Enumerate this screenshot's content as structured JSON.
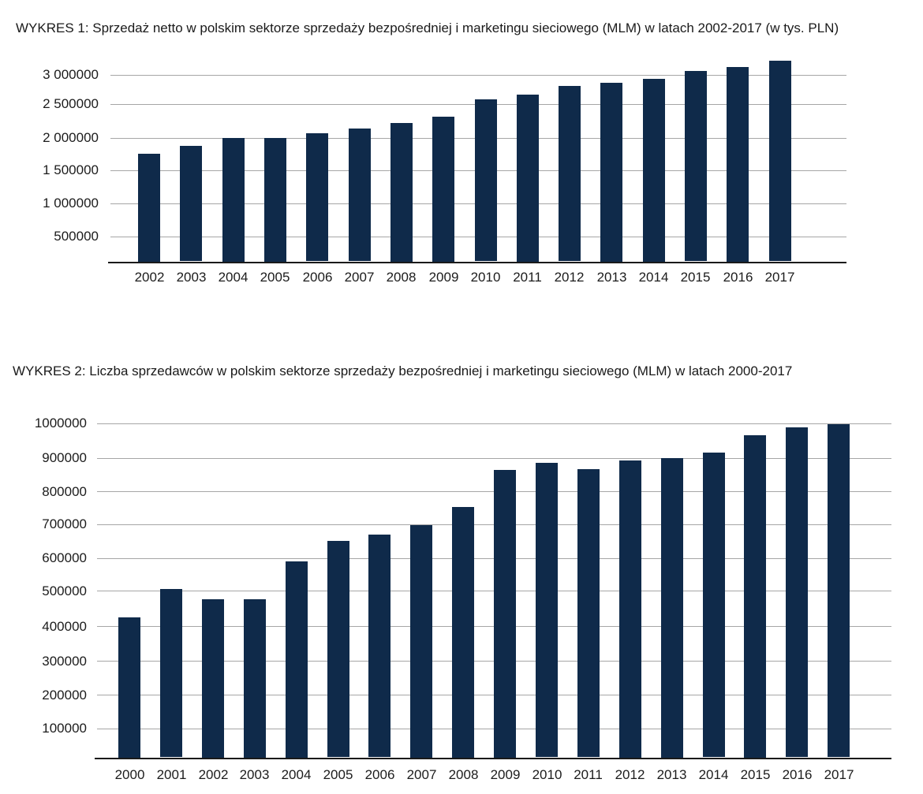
{
  "chart_data": [
    {
      "type": "bar",
      "title": "WYKRES 1: Sprzedaż netto w polskim sektorze sprzedaży bezpośredniej i marketingu sieciowego (MLM) w latach 2002-2017 (w tys. PLN)",
      "unit": "tys. PLN",
      "categories": [
        "2002",
        "2003",
        "2004",
        "2005",
        "2006",
        "2007",
        "2008",
        "2009",
        "2010",
        "2011",
        "2012",
        "2013",
        "2014",
        "2015",
        "2016",
        "2017"
      ],
      "values": [
        1750000,
        1870000,
        2000000,
        2000000,
        2060000,
        2130000,
        2220000,
        2310000,
        2570000,
        2660000,
        2800000,
        2860000,
        2930000,
        3060000,
        3130000,
        3230000
      ],
      "y_ticks": [
        500000,
        1000000,
        1500000,
        2000000,
        2500000,
        3000000
      ],
      "y_tick_labels": [
        "500000",
        "1 000000",
        "1 500000",
        "2 000000",
        "2 500000",
        "3 000000"
      ],
      "ylim": [
        100000,
        3300000
      ],
      "xlabel": "",
      "ylabel": "",
      "grid": true,
      "legend": "none",
      "bar_color": "#0f2a4a",
      "gridline_color": "#a6a6a6",
      "axis_color": "#1a1a1a",
      "text_color": "#1c1c1c"
    },
    {
      "type": "bar",
      "title": "WYKRES 2: Liczba sprzedawców w polskim sektorze sprzedaży bezpośredniej i marketingu sieciowego (MLM) w latach 2000-2017",
      "unit": "",
      "categories": [
        "2000",
        "2001",
        "2002",
        "2003",
        "2004",
        "2005",
        "2006",
        "2007",
        "2008",
        "2009",
        "2010",
        "2011",
        "2012",
        "2013",
        "2014",
        "2015",
        "2016",
        "2017"
      ],
      "values": [
        425000,
        505000,
        477000,
        477000,
        590000,
        650000,
        668000,
        697000,
        753000,
        865000,
        884000,
        866000,
        893000,
        900000,
        915000,
        966000,
        987000,
        996000
      ],
      "y_ticks": [
        100000,
        200000,
        300000,
        400000,
        500000,
        600000,
        700000,
        800000,
        900000,
        1000000
      ],
      "y_tick_labels": [
        "100000",
        "200000",
        "300000",
        "400000",
        "500000",
        "600000",
        "700000",
        "800000",
        "900000",
        "1000000"
      ],
      "ylim": [
        10000,
        1050000
      ],
      "xlabel": "",
      "ylabel": "",
      "grid": true,
      "legend": "none",
      "bar_color": "#0f2a4a",
      "gridline_color": "#a6a6a6",
      "axis_color": "#1a1a1a",
      "text_color": "#1c1c1c"
    }
  ]
}
